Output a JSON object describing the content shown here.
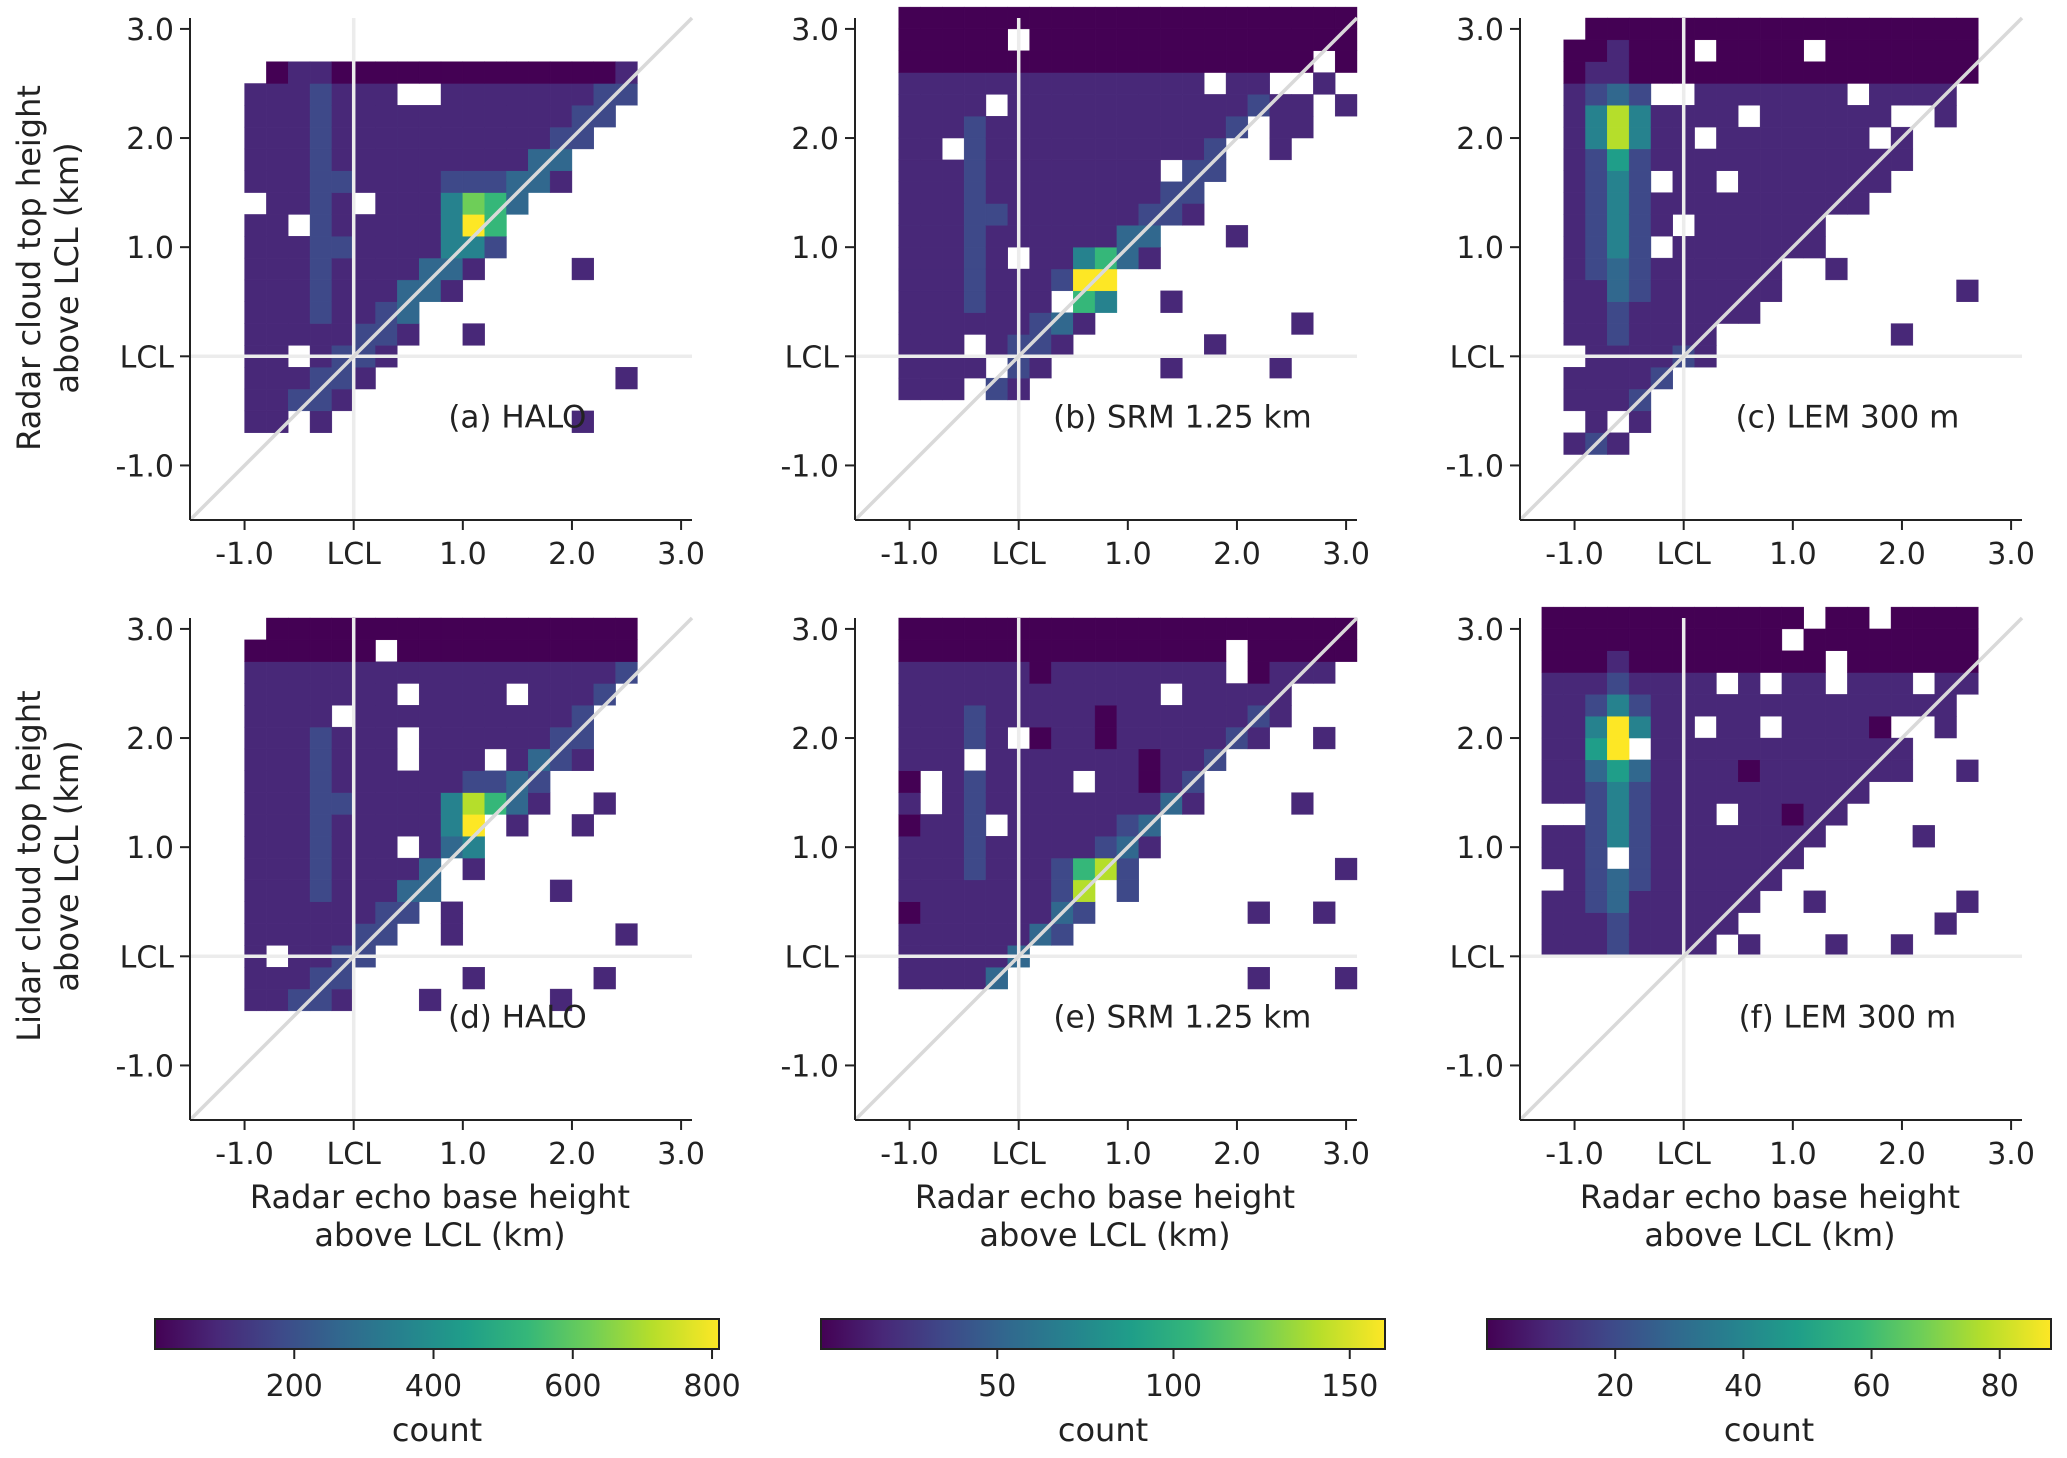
{
  "figure": {
    "row_ylabels": [
      [
        "Radar cloud top height",
        "above LCL (km)"
      ],
      [
        "Lidar cloud top height",
        "above LCL (km)"
      ]
    ],
    "xlabel": [
      "Radar echo base height",
      "above LCL (km)"
    ],
    "colorbar_label": "count"
  },
  "colors": {
    "empty": "#ffffff",
    "reference_lines": "#d9d9d9",
    "lcl_marker_lines": "#ececec",
    "axis": "#222222",
    "viridis": [
      "#440154",
      "#482878",
      "#3e4989",
      "#31688e",
      "#26828e",
      "#1f9e89",
      "#35b779",
      "#6ece58",
      "#b5de2b",
      "#fde725"
    ]
  },
  "chart_data": [
    {
      "id": "a",
      "type": "heatmap",
      "label": "(a) HALO",
      "x_ticks": [
        "-1.0",
        "LCL",
        "1.0",
        "2.0",
        "3.0"
      ],
      "x_tick_values": [
        -1,
        0,
        1,
        2,
        3
      ],
      "y_ticks": [
        "3.0",
        "2.0",
        "1.0",
        "LCL",
        "-1.0"
      ],
      "y_tick_values": [
        3,
        2,
        1,
        0,
        -1
      ],
      "xlim": [
        -1.5,
        3.1
      ],
      "ylim": [
        -1.5,
        3.1
      ],
      "bin_km": 0.2,
      "distribution": {
        "ridge": 1.0,
        "lower_fill": 0.08,
        "band_center": -0.3,
        "band_amp": 0.35,
        "peak_x": 1.1,
        "peak_y": 1.3,
        "peak_amp": 0.85,
        "upper_fill": 0.04
      },
      "extent_x": [
        -1.0,
        2.5
      ],
      "extent_y": [
        -0.7,
        2.7
      ],
      "color_max": 810
    },
    {
      "id": "b",
      "type": "heatmap",
      "label": "(b) SRM 1.25 km",
      "x_ticks": [
        "-1.0",
        "LCL",
        "1.0",
        "2.0",
        "3.0"
      ],
      "x_tick_values": [
        -1,
        0,
        1,
        2,
        3
      ],
      "y_ticks": [
        "3.0",
        "2.0",
        "1.0",
        "LCL",
        "-1.0"
      ],
      "y_tick_values": [
        3,
        2,
        1,
        0,
        -1
      ],
      "xlim": [
        -1.5,
        3.1
      ],
      "ylim": [
        -1.5,
        3.1
      ],
      "bin_km": 0.2,
      "distribution": {
        "ridge": 1.0,
        "lower_fill": 0.06,
        "band_center": -0.4,
        "band_amp": 0.35,
        "peak_x": 0.7,
        "peak_y": 0.7,
        "peak_amp": 0.9,
        "upper_fill": 0.05
      },
      "extent_x": [
        -1.1,
        3.1
      ],
      "extent_y": [
        -0.4,
        3.1
      ],
      "color_max": 160
    },
    {
      "id": "c",
      "type": "heatmap",
      "label": "(c) LEM 300 m",
      "x_ticks": [
        "-1.0",
        "LCL",
        "1.0",
        "2.0",
        "3.0"
      ],
      "x_tick_values": [
        -1,
        0,
        1,
        2,
        3
      ],
      "y_ticks": [
        "3.0",
        "2.0",
        "1.0",
        "LCL",
        "-1.0"
      ],
      "y_tick_values": [
        3,
        2,
        1,
        0,
        -1
      ],
      "xlim": [
        -1.5,
        3.1
      ],
      "ylim": [
        -1.5,
        3.1
      ],
      "bin_km": 0.2,
      "distribution": {
        "ridge": 0.4,
        "lower_fill": 0.06,
        "band_center": -0.6,
        "band_amp": 0.85,
        "peak_x": -0.6,
        "peak_y": 2.1,
        "peak_amp": 0.7,
        "upper_fill": 0.03
      },
      "extent_x": [
        -1.1,
        2.7
      ],
      "extent_y": [
        -0.9,
        3.1
      ],
      "color_max": 88
    },
    {
      "id": "d",
      "type": "heatmap",
      "label": "(d) HALO",
      "x_ticks": [
        "-1.0",
        "LCL",
        "1.0",
        "2.0",
        "3.0"
      ],
      "x_tick_values": [
        -1,
        0,
        1,
        2,
        3
      ],
      "y_ticks": [
        "3.0",
        "2.0",
        "1.0",
        "LCL",
        "-1.0"
      ],
      "y_tick_values": [
        3,
        2,
        1,
        0,
        -1
      ],
      "xlim": [
        -1.5,
        3.1
      ],
      "ylim": [
        -1.5,
        3.1
      ],
      "bin_km": 0.2,
      "distribution": {
        "ridge": 0.9,
        "lower_fill": 0.08,
        "band_center": -0.3,
        "band_amp": 0.3,
        "peak_x": 1.1,
        "peak_y": 1.3,
        "peak_amp": 0.95,
        "upper_fill": 0.04
      },
      "extent_x": [
        -1.0,
        2.5
      ],
      "extent_y": [
        -0.5,
        3.1
      ],
      "color_max": 810
    },
    {
      "id": "e",
      "type": "heatmap",
      "label": "(e) SRM 1.25 km",
      "x_ticks": [
        "-1.0",
        "LCL",
        "1.0",
        "2.0",
        "3.0"
      ],
      "x_tick_values": [
        -1,
        0,
        1,
        2,
        3
      ],
      "y_ticks": [
        "3.0",
        "2.0",
        "1.0",
        "LCL",
        "-1.0"
      ],
      "y_tick_values": [
        3,
        2,
        1,
        0,
        -1
      ],
      "xlim": [
        -1.5,
        3.1
      ],
      "ylim": [
        -1.5,
        3.1
      ],
      "bin_km": 0.2,
      "distribution": {
        "ridge": 0.9,
        "lower_fill": 0.05,
        "band_center": -0.4,
        "band_amp": 0.3,
        "peak_x": 0.7,
        "peak_y": 0.7,
        "peak_amp": 0.75,
        "upper_fill": 0.05
      },
      "extent_x": [
        -1.1,
        3.1
      ],
      "extent_y": [
        -0.3,
        3.1
      ],
      "color_max": 160
    },
    {
      "id": "f",
      "type": "heatmap",
      "label": "(f) LEM 300 m",
      "x_ticks": [
        "-1.0",
        "LCL",
        "1.0",
        "2.0",
        "3.0"
      ],
      "x_tick_values": [
        -1,
        0,
        1,
        2,
        3
      ],
      "y_ticks": [
        "3.0",
        "2.0",
        "1.0",
        "LCL",
        "-1.0"
      ],
      "y_tick_values": [
        3,
        2,
        1,
        0,
        -1
      ],
      "xlim": [
        -1.5,
        3.1
      ],
      "ylim": [
        -1.5,
        3.1
      ],
      "bin_km": 0.2,
      "distribution": {
        "ridge": 0.3,
        "lower_fill": 0.05,
        "band_center": -0.6,
        "band_amp": 0.9,
        "peak_x": -0.6,
        "peak_y": 2.0,
        "peak_amp": 0.8,
        "upper_fill": 0.04
      },
      "extent_x": [
        -1.3,
        2.7
      ],
      "extent_y": [
        0.0,
        3.1
      ],
      "color_max": 88
    }
  ],
  "colorbars": [
    {
      "id": "halo",
      "label": "count",
      "ticks": [
        "200",
        "400",
        "600",
        "800"
      ],
      "tick_values": [
        200,
        400,
        600,
        800
      ],
      "range": [
        0,
        810
      ]
    },
    {
      "id": "srm",
      "label": "count",
      "ticks": [
        "50",
        "100",
        "150"
      ],
      "tick_values": [
        50,
        100,
        150
      ],
      "range": [
        0,
        160
      ]
    },
    {
      "id": "lem",
      "label": "count",
      "ticks": [
        "20",
        "40",
        "60",
        "80"
      ],
      "tick_values": [
        20,
        40,
        60,
        80
      ],
      "range": [
        0,
        88
      ]
    }
  ]
}
